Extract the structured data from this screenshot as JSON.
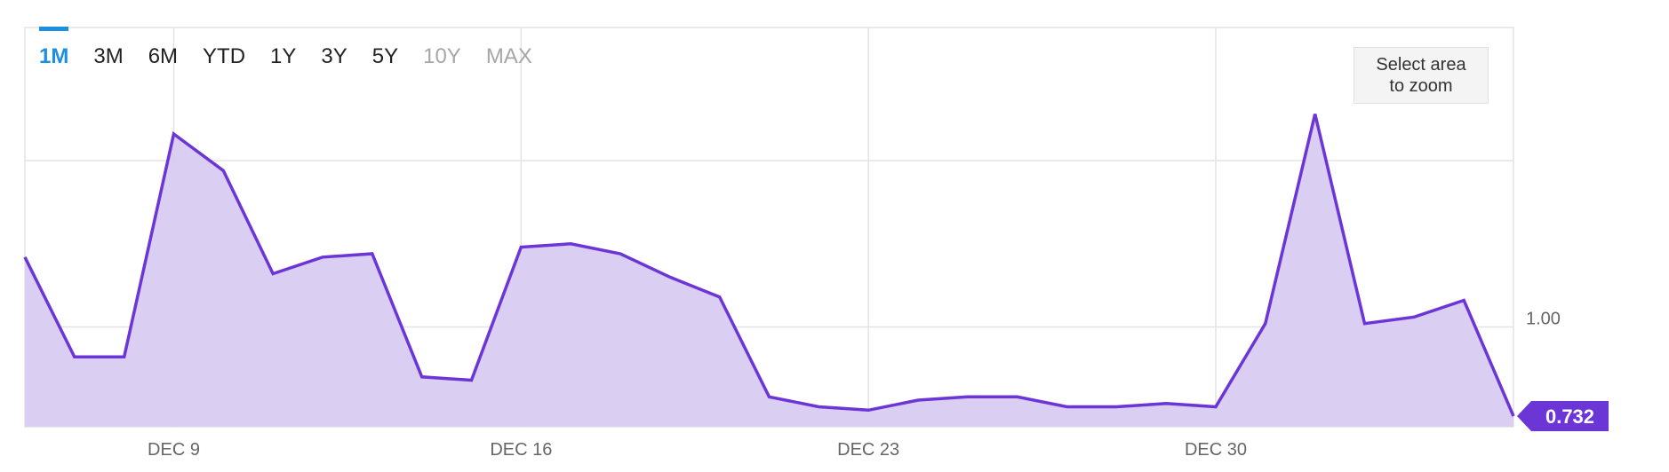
{
  "range_tabs": [
    {
      "label": "1M",
      "state": "active"
    },
    {
      "label": "3M",
      "state": "normal"
    },
    {
      "label": "6M",
      "state": "normal"
    },
    {
      "label": "YTD",
      "state": "normal"
    },
    {
      "label": "1Y",
      "state": "normal"
    },
    {
      "label": "3Y",
      "state": "normal"
    },
    {
      "label": "5Y",
      "state": "normal"
    },
    {
      "label": "10Y",
      "state": "disabled"
    },
    {
      "label": "MAX",
      "state": "disabled"
    }
  ],
  "zoom_hint": "Select area to zoom",
  "colors": {
    "line": "#6c35d6",
    "area": "#d8ccf2",
    "grid": "#e3e3e3",
    "current_badge": "#6c35d6",
    "active_tab": "#1d8fe1"
  },
  "chart_data": {
    "type": "area",
    "x": [
      "Dec 6",
      "Dec 7",
      "Dec 8",
      "Dec 9",
      "Dec 10",
      "Dec 11",
      "Dec 12",
      "Dec 13",
      "Dec 14",
      "Dec 15",
      "Dec 16",
      "Dec 17",
      "Dec 18",
      "Dec 19",
      "Dec 20",
      "Dec 21",
      "Dec 22",
      "Dec 23",
      "Dec 24",
      "Dec 25",
      "Dec 26",
      "Dec 27",
      "Dec 28",
      "Dec 29",
      "Dec 30",
      "Dec 31",
      "Jan 1",
      "Jan 2",
      "Jan 3",
      "Jan 4",
      "Jan 5"
    ],
    "series": [
      {
        "values": [
          1.21,
          0.91,
          0.91,
          1.58,
          1.47,
          1.16,
          1.21,
          1.22,
          0.85,
          0.84,
          1.24,
          1.25,
          1.22,
          1.15,
          1.09,
          0.79,
          0.76,
          0.75,
          0.78,
          0.79,
          0.79,
          0.76,
          0.76,
          0.77,
          0.76,
          1.01,
          1.64,
          1.01,
          1.03,
          1.08,
          0.732
        ]
      }
    ],
    "x_ticks": [
      "DEC 9",
      "DEC 16",
      "DEC 23",
      "DEC 30"
    ],
    "x_tick_values": [
      "Dec 9",
      "Dec 16",
      "Dec 23",
      "Dec 30"
    ],
    "y_ticks": [
      "1.00"
    ],
    "y_tick_values": [
      1.0
    ],
    "ylim": [
      0.7,
      1.9
    ],
    "grid": true,
    "current_value": "0.732"
  }
}
